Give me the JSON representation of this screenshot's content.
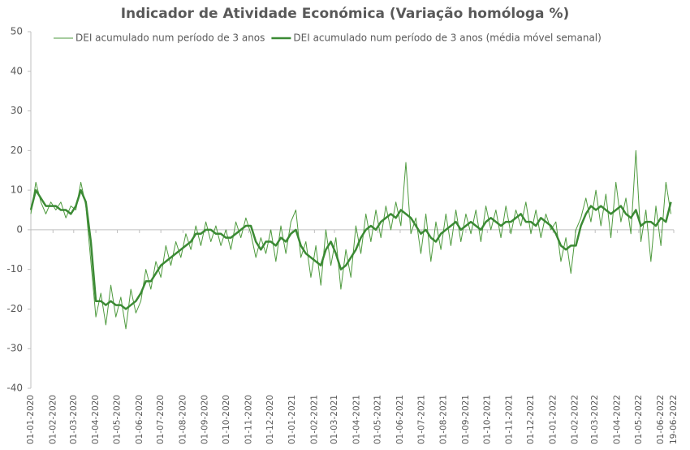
{
  "chart_data": {
    "type": "line",
    "title": "Indicador de Atividade Económica (Variação homóloga %)",
    "x": [
      "2020-01-01",
      "2020-01-08",
      "2020-01-15",
      "2020-01-22",
      "2020-01-29",
      "2020-02-05",
      "2020-02-12",
      "2020-02-19",
      "2020-02-26",
      "2020-03-04",
      "2020-03-11",
      "2020-03-18",
      "2020-03-25",
      "2020-04-01",
      "2020-04-08",
      "2020-04-15",
      "2020-04-22",
      "2020-04-29",
      "2020-05-06",
      "2020-05-13",
      "2020-05-20",
      "2020-05-27",
      "2020-06-03",
      "2020-06-10",
      "2020-06-17",
      "2020-06-24",
      "2020-07-01",
      "2020-07-08",
      "2020-07-15",
      "2020-07-22",
      "2020-07-29",
      "2020-08-05",
      "2020-08-12",
      "2020-08-19",
      "2020-08-26",
      "2020-09-02",
      "2020-09-09",
      "2020-09-16",
      "2020-09-23",
      "2020-09-30",
      "2020-10-07",
      "2020-10-14",
      "2020-10-21",
      "2020-10-28",
      "2020-11-04",
      "2020-11-11",
      "2020-11-18",
      "2020-11-25",
      "2020-12-02",
      "2020-12-09",
      "2020-12-16",
      "2020-12-23",
      "2020-12-30",
      "2021-01-06",
      "2021-01-13",
      "2021-01-20",
      "2021-01-27",
      "2021-02-03",
      "2021-02-10",
      "2021-02-17",
      "2021-02-24",
      "2021-03-03",
      "2021-03-10",
      "2021-03-17",
      "2021-03-24",
      "2021-03-31",
      "2021-04-07",
      "2021-04-14",
      "2021-04-21",
      "2021-04-28",
      "2021-05-05",
      "2021-05-12",
      "2021-05-19",
      "2021-05-26",
      "2021-06-02",
      "2021-06-09",
      "2021-06-16",
      "2021-06-23",
      "2021-06-30",
      "2021-07-07",
      "2021-07-14",
      "2021-07-21",
      "2021-07-28",
      "2021-08-04",
      "2021-08-11",
      "2021-08-18",
      "2021-08-25",
      "2021-09-01",
      "2021-09-08",
      "2021-09-15",
      "2021-09-22",
      "2021-09-29",
      "2021-10-06",
      "2021-10-13",
      "2021-10-20",
      "2021-10-27",
      "2021-11-03",
      "2021-11-10",
      "2021-11-17",
      "2021-11-24",
      "2021-12-01",
      "2021-12-08",
      "2021-12-15",
      "2021-12-22",
      "2021-12-29",
      "2022-01-05",
      "2022-01-12",
      "2022-01-19",
      "2022-01-26",
      "2022-02-02",
      "2022-02-09",
      "2022-02-16",
      "2022-02-23",
      "2022-03-02",
      "2022-03-09",
      "2022-03-16",
      "2022-03-23",
      "2022-03-30",
      "2022-04-06",
      "2022-04-13",
      "2022-04-20",
      "2022-04-27",
      "2022-05-04",
      "2022-05-11",
      "2022-05-18",
      "2022-05-25",
      "2022-06-01",
      "2022-06-08",
      "2022-06-15"
    ],
    "series": [
      {
        "name": "DEI acumulado num período de 3 anos",
        "color": "#4e9a3e",
        "width": 1,
        "values": [
          4,
          12,
          7,
          4,
          7,
          5,
          7,
          3,
          6,
          5,
          12,
          6,
          -8,
          -22,
          -16,
          -24,
          -14,
          -22,
          -17,
          -25,
          -15,
          -21,
          -18,
          -10,
          -15,
          -8,
          -12,
          -4,
          -9,
          -3,
          -7,
          -1,
          -5,
          1,
          -4,
          2,
          -3,
          1,
          -4,
          0,
          -5,
          2,
          -2,
          3,
          -1,
          -7,
          -2,
          -6,
          0,
          -8,
          1,
          -6,
          2,
          5,
          -7,
          -3,
          -12,
          -4,
          -14,
          0,
          -9,
          -2,
          -15,
          -5,
          -12,
          1,
          -6,
          4,
          -3,
          5,
          -2,
          6,
          0,
          7,
          1,
          17,
          -1,
          3,
          -6,
          4,
          -8,
          2,
          -5,
          4,
          -4,
          5,
          -3,
          4,
          -1,
          5,
          -3,
          6,
          0,
          5,
          -2,
          6,
          -1,
          5,
          1,
          7,
          -1,
          5,
          -2,
          4,
          0,
          2,
          -8,
          -2,
          -11,
          0,
          3,
          8,
          2,
          10,
          1,
          9,
          -2,
          12,
          2,
          8,
          -1,
          20,
          -3,
          5,
          -8,
          6,
          -4,
          12,
          4
        ]
      },
      {
        "name": "DEI acumulado num período de 3 anos (média móvel semanal)",
        "color": "#3b8a34",
        "width": 2.5,
        "values": [
          5,
          10,
          8,
          6,
          6,
          6,
          5,
          5,
          4,
          6,
          10,
          7,
          -3,
          -18,
          -18,
          -19,
          -18,
          -19,
          -19,
          -20,
          -19,
          -18,
          -16,
          -13,
          -13,
          -11,
          -9,
          -8,
          -7,
          -6,
          -5,
          -4,
          -3,
          -1,
          -1,
          0,
          0,
          -1,
          -1,
          -2,
          -2,
          -1,
          0,
          1,
          1,
          -3,
          -5,
          -3,
          -3,
          -4,
          -2,
          -3,
          -1,
          0,
          -4,
          -6,
          -7,
          -8,
          -9,
          -5,
          -3,
          -6,
          -10,
          -9,
          -7,
          -5,
          -2,
          0,
          1,
          0,
          2,
          3,
          4,
          3,
          5,
          4,
          3,
          1,
          -1,
          0,
          -2,
          -3,
          -1,
          0,
          1,
          2,
          0,
          1,
          2,
          1,
          0,
          2,
          3,
          2,
          1,
          2,
          2,
          3,
          4,
          2,
          2,
          1,
          3,
          2,
          1,
          -1,
          -4,
          -5,
          -4,
          -4,
          1,
          4,
          6,
          5,
          6,
          5,
          4,
          5,
          6,
          4,
          3,
          5,
          1,
          2,
          2,
          1,
          3,
          2,
          7
        ]
      }
    ],
    "xlim": [
      "2020-01-01",
      "2022-06-19"
    ],
    "xticks": [
      {
        "value": "2020-01-01",
        "label": "01-01-2020"
      },
      {
        "value": "2020-02-01",
        "label": "01-02-2020"
      },
      {
        "value": "2020-03-01",
        "label": "01-03-2020"
      },
      {
        "value": "2020-04-01",
        "label": "01-04-2020"
      },
      {
        "value": "2020-05-01",
        "label": "01-05-2020"
      },
      {
        "value": "2020-06-01",
        "label": "01-06-2020"
      },
      {
        "value": "2020-07-01",
        "label": "01-07-2020"
      },
      {
        "value": "2020-08-01",
        "label": "01-08-2020"
      },
      {
        "value": "2020-09-01",
        "label": "01-09-2020"
      },
      {
        "value": "2020-10-01",
        "label": "01-10-2020"
      },
      {
        "value": "2020-11-01",
        "label": "01-11-2020"
      },
      {
        "value": "2020-12-01",
        "label": "01-12-2020"
      },
      {
        "value": "2021-01-01",
        "label": "01-01-2021"
      },
      {
        "value": "2021-02-01",
        "label": "01-02-2021"
      },
      {
        "value": "2021-03-01",
        "label": "01-03-2021"
      },
      {
        "value": "2021-04-01",
        "label": "01-04-2021"
      },
      {
        "value": "2021-05-01",
        "label": "01-05-2021"
      },
      {
        "value": "2021-06-01",
        "label": "01-06-2021"
      },
      {
        "value": "2021-07-01",
        "label": "01-07-2021"
      },
      {
        "value": "2021-08-01",
        "label": "01-08-2021"
      },
      {
        "value": "2021-09-01",
        "label": "01-09-2021"
      },
      {
        "value": "2021-10-01",
        "label": "01-10-2021"
      },
      {
        "value": "2021-11-01",
        "label": "01-11-2021"
      },
      {
        "value": "2021-12-01",
        "label": "01-12-2021"
      },
      {
        "value": "2022-01-01",
        "label": "01-01-2022"
      },
      {
        "value": "2022-02-01",
        "label": "01-02-2022"
      },
      {
        "value": "2022-03-01",
        "label": "01-03-2022"
      },
      {
        "value": "2022-04-01",
        "label": "01-04-2022"
      },
      {
        "value": "2022-05-01",
        "label": "01-05-2022"
      },
      {
        "value": "2022-06-01",
        "label": "01-06-2022"
      },
      {
        "value": "2022-06-19",
        "label": "19-06-2022"
      }
    ],
    "ylim": [
      -40,
      50
    ],
    "yticks": [
      -40,
      -30,
      -20,
      -10,
      0,
      10,
      20,
      30,
      40,
      50
    ],
    "grid": false,
    "legend": "top"
  }
}
